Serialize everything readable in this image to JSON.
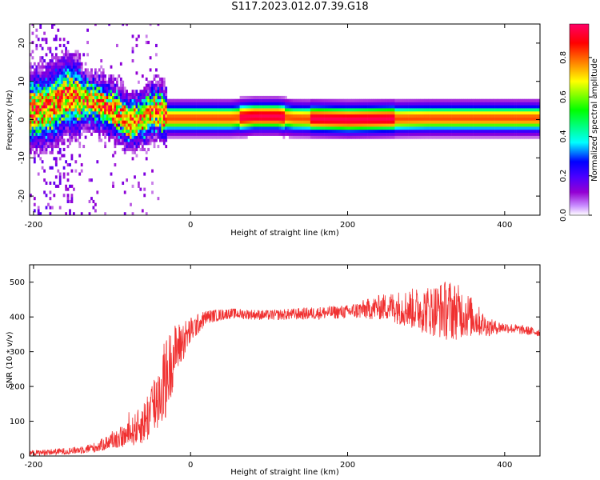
{
  "title": "S117.2023.012.07.39.G18",
  "chart_data": [
    {
      "type": "heatmap",
      "xlabel": "Height of straight line (km)",
      "ylabel": "Frequency (Hz)",
      "xlim": [
        -205,
        445
      ],
      "ylim": [
        -25,
        25
      ],
      "xticks": [
        -200,
        0,
        200,
        400
      ],
      "yticks": [
        20,
        10,
        0,
        -10,
        -20
      ],
      "colorbar": {
        "label": "Normalized spectral amplitude",
        "ticks": [
          "0.0",
          "0.2",
          "0.4",
          "0.6",
          "0.8"
        ],
        "tick_values": [
          0.0,
          0.2,
          0.4,
          0.6,
          0.8
        ],
        "range": [
          0,
          0.97
        ],
        "colormap": [
          "#ffffff",
          "#9400d3",
          "#4b00ff",
          "#0000ff",
          "#00ffff",
          "#00ff00",
          "#ffff00",
          "#ff8000",
          "#ff0000",
          "#ff0066"
        ]
      },
      "ridge": {
        "x": [
          -200,
          -180,
          -160,
          -140,
          -120,
          -100,
          -80,
          -60,
          -50,
          -40,
          -30,
          0,
          50,
          80,
          110,
          130,
          200,
          300,
          400,
          445
        ],
        "frequency": [
          2,
          3,
          6,
          5,
          4,
          2,
          -1,
          0,
          2,
          2,
          0,
          0,
          0,
          0.5,
          0.5,
          0,
          -0.3,
          0,
          0,
          0
        ]
      },
      "grid": false
    },
    {
      "type": "line",
      "xlabel": "Height of straight line (km)",
      "ylabel": "SNR (10 * v/v)",
      "xlim": [
        -205,
        445
      ],
      "ylim": [
        0,
        550
      ],
      "xticks": [
        -200,
        0,
        200,
        400
      ],
      "yticks": [
        0,
        100,
        200,
        300,
        400,
        500
      ],
      "color": "#f03030",
      "envelope": {
        "x": [
          -205,
          -150,
          -120,
          -100,
          -80,
          -60,
          -50,
          -40,
          -30,
          -20,
          0,
          20,
          50,
          100,
          150,
          200,
          250,
          300,
          330,
          350,
          380,
          400,
          445
        ],
        "mean": [
          8,
          15,
          25,
          45,
          60,
          95,
          130,
          180,
          230,
          300,
          360,
          400,
          410,
          405,
          410,
          415,
          430,
          420,
          420,
          410,
          370,
          370,
          355
        ],
        "spread": [
          8,
          10,
          15,
          25,
          35,
          60,
          90,
          110,
          120,
          80,
          40,
          20,
          15,
          15,
          18,
          20,
          40,
          70,
          90,
          70,
          25,
          15,
          12
        ]
      },
      "grid": false
    }
  ]
}
